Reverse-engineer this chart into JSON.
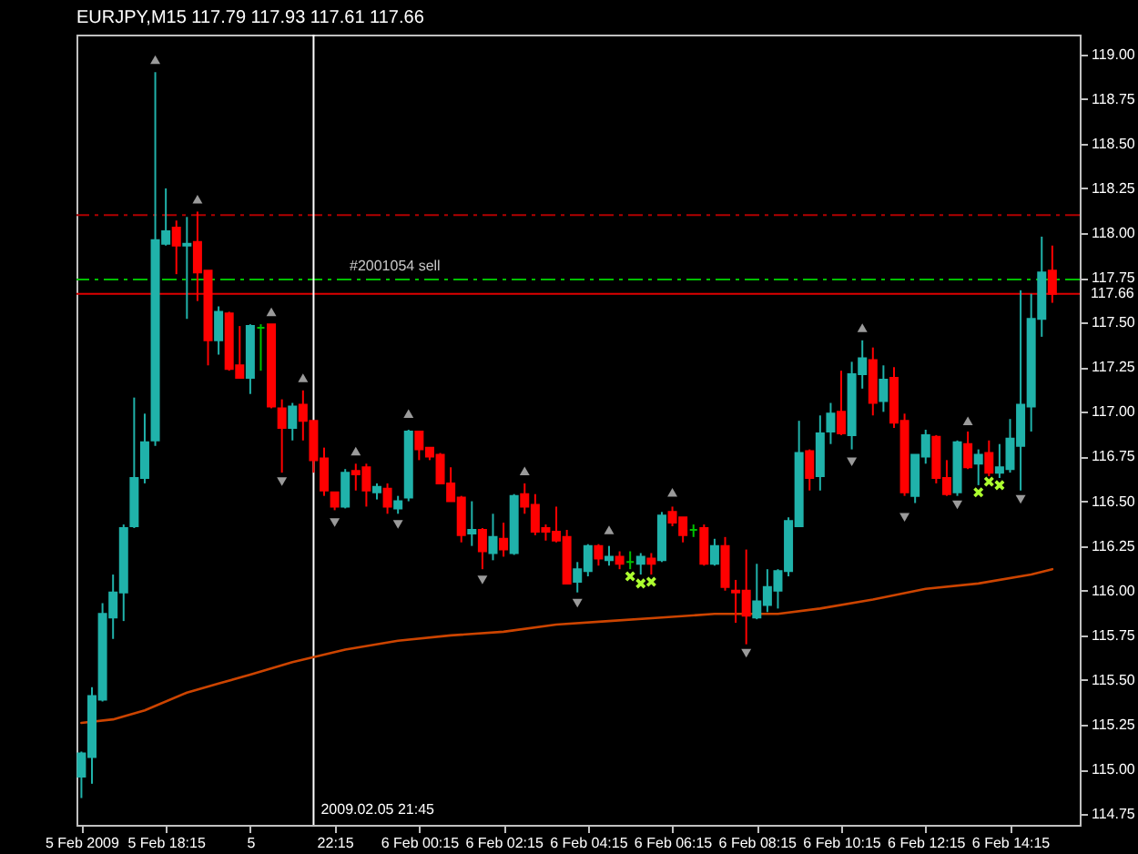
{
  "chart_data": {
    "type": "candlestick",
    "title": "EURJPY,M15 117.79 117.93 117.61 117.66",
    "x": [
      "2009-02-05T16:15",
      "2009-02-05T16:30",
      "2009-02-05T16:45",
      "2009-02-05T17:00",
      "2009-02-05T17:15",
      "2009-02-05T17:30",
      "2009-02-05T17:45",
      "2009-02-05T18:00",
      "2009-02-05T18:15",
      "2009-02-05T18:30",
      "2009-02-05T18:45",
      "2009-02-05T19:00",
      "2009-02-05T19:15",
      "2009-02-05T19:30",
      "2009-02-05T19:45",
      "2009-02-05T20:00",
      "2009-02-05T20:15",
      "2009-02-05T20:30",
      "2009-02-05T20:45",
      "2009-02-05T21:00",
      "2009-02-05T21:15",
      "2009-02-05T21:30",
      "2009-02-05T21:45",
      "2009-02-05T22:00",
      "2009-02-05T22:15",
      "2009-02-05T22:30",
      "2009-02-05T22:45",
      "2009-02-05T23:00",
      "2009-02-05T23:15",
      "2009-02-05T23:30",
      "2009-02-05T23:45",
      "2009-02-06T00:00",
      "2009-02-06T00:15",
      "2009-02-06T00:30",
      "2009-02-06T00:45",
      "2009-02-06T01:00",
      "2009-02-06T01:15",
      "2009-02-06T01:30",
      "2009-02-06T01:45",
      "2009-02-06T02:00",
      "2009-02-06T02:15",
      "2009-02-06T02:30",
      "2009-02-06T02:45",
      "2009-02-06T03:00",
      "2009-02-06T03:15",
      "2009-02-06T03:30",
      "2009-02-06T03:45",
      "2009-02-06T04:00",
      "2009-02-06T04:15",
      "2009-02-06T04:30",
      "2009-02-06T04:45",
      "2009-02-06T05:00",
      "2009-02-06T05:15",
      "2009-02-06T05:30",
      "2009-02-06T05:45",
      "2009-02-06T06:00",
      "2009-02-06T06:15",
      "2009-02-06T06:30",
      "2009-02-06T06:45",
      "2009-02-06T07:00",
      "2009-02-06T07:15",
      "2009-02-06T07:30",
      "2009-02-06T07:45",
      "2009-02-06T08:00",
      "2009-02-06T08:15",
      "2009-02-06T08:30",
      "2009-02-06T08:45",
      "2009-02-06T09:00",
      "2009-02-06T09:15",
      "2009-02-06T09:30",
      "2009-02-06T09:45",
      "2009-02-06T10:00",
      "2009-02-06T10:15",
      "2009-02-06T10:30",
      "2009-02-06T10:45",
      "2009-02-06T11:00",
      "2009-02-06T11:15",
      "2009-02-06T11:30",
      "2009-02-06T11:45",
      "2009-02-06T12:00",
      "2009-02-06T12:15",
      "2009-02-06T12:30",
      "2009-02-06T12:45",
      "2009-02-06T13:00",
      "2009-02-06T13:15",
      "2009-02-06T13:30",
      "2009-02-06T13:45",
      "2009-02-06T14:00",
      "2009-02-06T14:15",
      "2009-02-06T14:30",
      "2009-02-06T14:45",
      "2009-02-06T15:00",
      "2009-02-06T15:15"
    ],
    "ohlc": [
      [
        114.96,
        115.1,
        114.84,
        115.09
      ],
      [
        115.07,
        115.46,
        114.92,
        115.41
      ],
      [
        115.39,
        115.93,
        115.38,
        115.87
      ],
      [
        115.85,
        116.09,
        115.73,
        115.99
      ],
      [
        115.99,
        116.37,
        115.83,
        116.35
      ],
      [
        116.36,
        117.08,
        116.35,
        116.63
      ],
      [
        116.63,
        116.99,
        116.6,
        116.83
      ],
      [
        116.84,
        118.9,
        116.81,
        117.96
      ],
      [
        117.94,
        118.25,
        117.93,
        118.01
      ],
      [
        118.03,
        118.07,
        117.77,
        117.93
      ],
      [
        117.93,
        118.09,
        117.52,
        117.94
      ],
      [
        117.95,
        118.12,
        117.62,
        117.78
      ],
      [
        117.79,
        117.79,
        117.26,
        117.4
      ],
      [
        117.4,
        117.59,
        117.32,
        117.56
      ],
      [
        117.55,
        117.56,
        117.23,
        117.24
      ],
      [
        117.26,
        117.48,
        117.19,
        117.19
      ],
      [
        117.19,
        117.49,
        117.1,
        117.48
      ],
      [
        117.47,
        117.49,
        117.23,
        117.47
      ],
      [
        117.49,
        117.49,
        117.02,
        117.03
      ],
      [
        117.02,
        117.07,
        116.66,
        116.91
      ],
      [
        116.91,
        117.05,
        116.84,
        117.03
      ],
      [
        117.04,
        117.12,
        116.84,
        116.95
      ],
      [
        116.95,
        116.95,
        116.66,
        116.73
      ],
      [
        116.74,
        116.8,
        116.53,
        116.56
      ],
      [
        116.55,
        116.55,
        116.45,
        116.47
      ],
      [
        116.47,
        116.68,
        116.46,
        116.66
      ],
      [
        116.67,
        116.71,
        116.56,
        116.65
      ],
      [
        116.69,
        116.71,
        116.47,
        116.56
      ],
      [
        116.55,
        116.6,
        116.51,
        116.58
      ],
      [
        116.57,
        116.6,
        116.43,
        116.47
      ],
      [
        116.46,
        116.53,
        116.43,
        116.5
      ],
      [
        116.52,
        116.9,
        116.5,
        116.89
      ],
      [
        116.89,
        116.89,
        116.73,
        116.79
      ],
      [
        116.8,
        116.8,
        116.73,
        116.75
      ],
      [
        116.76,
        116.77,
        116.6,
        116.6
      ],
      [
        116.6,
        116.69,
        116.5,
        116.5
      ],
      [
        116.52,
        116.53,
        116.27,
        116.31
      ],
      [
        116.32,
        116.5,
        116.25,
        116.34
      ],
      [
        116.34,
        116.35,
        116.12,
        116.22
      ],
      [
        116.21,
        116.43,
        116.17,
        116.3
      ],
      [
        116.29,
        116.38,
        116.19,
        116.23
      ],
      [
        116.21,
        116.54,
        116.2,
        116.53
      ],
      [
        116.54,
        116.6,
        116.43,
        116.47
      ],
      [
        116.48,
        116.54,
        116.31,
        116.33
      ],
      [
        116.35,
        116.37,
        116.28,
        116.33
      ],
      [
        116.33,
        116.47,
        116.27,
        116.28
      ],
      [
        116.3,
        116.34,
        116.04,
        116.04
      ],
      [
        116.05,
        116.16,
        115.99,
        116.12
      ],
      [
        116.11,
        116.26,
        116.08,
        116.25
      ],
      [
        116.25,
        116.26,
        116.14,
        116.18
      ],
      [
        116.17,
        116.25,
        116.14,
        116.19
      ],
      [
        116.19,
        116.22,
        116.12,
        116.15
      ],
      [
        116.16,
        116.22,
        116.12,
        116.16
      ],
      [
        116.15,
        116.21,
        116.09,
        116.19
      ],
      [
        116.18,
        116.21,
        116.09,
        116.15
      ],
      [
        116.17,
        116.44,
        116.16,
        116.42
      ],
      [
        116.44,
        116.47,
        116.36,
        116.38
      ],
      [
        116.41,
        116.41,
        116.27,
        116.31
      ],
      [
        116.34,
        116.37,
        116.3,
        116.34
      ],
      [
        116.35,
        116.37,
        116.14,
        116.15
      ],
      [
        116.15,
        116.29,
        116.14,
        116.25
      ],
      [
        116.25,
        116.3,
        116.0,
        116.02
      ],
      [
        116.0,
        116.06,
        115.82,
        115.99
      ],
      [
        116.0,
        116.23,
        115.7,
        115.86
      ],
      [
        115.85,
        116.15,
        115.84,
        115.94
      ],
      [
        115.92,
        116.12,
        115.88,
        116.02
      ],
      [
        116.0,
        116.12,
        115.9,
        116.11
      ],
      [
        116.11,
        116.41,
        116.08,
        116.39
      ],
      [
        116.36,
        116.95,
        116.36,
        116.77
      ],
      [
        116.78,
        116.79,
        116.56,
        116.63
      ],
      [
        116.64,
        116.98,
        116.56,
        116.88
      ],
      [
        116.89,
        117.05,
        116.82,
        116.99
      ],
      [
        117.0,
        117.23,
        116.87,
        116.88
      ],
      [
        116.87,
        117.28,
        116.79,
        117.21
      ],
      [
        117.21,
        117.4,
        117.13,
        117.3
      ],
      [
        117.29,
        117.36,
        116.98,
        117.05
      ],
      [
        117.06,
        117.26,
        117.0,
        117.18
      ],
      [
        117.19,
        117.25,
        116.91,
        116.94
      ],
      [
        116.95,
        116.99,
        116.53,
        116.55
      ],
      [
        116.53,
        116.76,
        116.49,
        116.76
      ],
      [
        116.75,
        116.9,
        116.71,
        116.87
      ],
      [
        116.86,
        116.87,
        116.6,
        116.63
      ],
      [
        116.63,
        116.73,
        116.53,
        116.54
      ],
      [
        116.55,
        116.84,
        116.53,
        116.83
      ],
      [
        116.82,
        116.89,
        116.68,
        116.69
      ],
      [
        116.71,
        116.79,
        116.59,
        116.76
      ],
      [
        116.77,
        116.84,
        116.64,
        116.66
      ],
      [
        116.66,
        116.82,
        116.63,
        116.69
      ],
      [
        116.68,
        116.96,
        116.66,
        116.85
      ],
      [
        116.81,
        117.68,
        116.56,
        117.04
      ],
      [
        117.03,
        117.66,
        116.89,
        117.52
      ],
      [
        117.52,
        117.98,
        117.42,
        117.78
      ],
      [
        117.79,
        117.93,
        117.61,
        117.66
      ]
    ],
    "colors": [
      "#20b2aa",
      "#20b2aa",
      "#20b2aa",
      "#20b2aa",
      "#20b2aa",
      "#20b2aa",
      "#20b2aa",
      "#20b2aa",
      "#20b2aa",
      "#ff0000",
      "#20b2aa",
      "#ff0000",
      "#ff0000",
      "#20b2aa",
      "#ff0000",
      "#ff0000",
      "#20b2aa",
      "#00c000",
      "#ff0000",
      "#ff0000",
      "#20b2aa",
      "#ff0000",
      "#ff0000",
      "#ff0000",
      "#ff0000",
      "#20b2aa",
      "#ff0000",
      "#ff0000",
      "#20b2aa",
      "#ff0000",
      "#20b2aa",
      "#20b2aa",
      "#ff0000",
      "#ff0000",
      "#ff0000",
      "#ff0000",
      "#ff0000",
      "#20b2aa",
      "#ff0000",
      "#20b2aa",
      "#ff0000",
      "#20b2aa",
      "#ff0000",
      "#ff0000",
      "#ff0000",
      "#ff0000",
      "#ff0000",
      "#20b2aa",
      "#20b2aa",
      "#ff0000",
      "#20b2aa",
      "#ff0000",
      "#00c000",
      "#20b2aa",
      "#ff0000",
      "#20b2aa",
      "#ff0000",
      "#ff0000",
      "#00c000",
      "#ff0000",
      "#20b2aa",
      "#ff0000",
      "#ff0000",
      "#ff0000",
      "#20b2aa",
      "#20b2aa",
      "#20b2aa",
      "#20b2aa",
      "#20b2aa",
      "#ff0000",
      "#20b2aa",
      "#20b2aa",
      "#ff0000",
      "#20b2aa",
      "#20b2aa",
      "#ff0000",
      "#20b2aa",
      "#ff0000",
      "#ff0000",
      "#20b2aa",
      "#20b2aa",
      "#ff0000",
      "#ff0000",
      "#20b2aa",
      "#ff0000",
      "#20b2aa",
      "#ff0000",
      "#20b2aa",
      "#20b2aa",
      "#20b2aa",
      "#20b2aa",
      "#20b2aa",
      "#ff0000"
    ],
    "series": [
      {
        "type": "line",
        "color": "#cc4400",
        "x": [
          "2009-02-05T16:15",
          "2009-02-05T17:00",
          "2009-02-05T17:45",
          "2009-02-05T18:45",
          "2009-02-05T19:30",
          "2009-02-05T20:15",
          "2009-02-05T21:15",
          "2009-02-05T22:30",
          "2009-02-05T23:45",
          "2009-02-06T01:00",
          "2009-02-06T02:15",
          "2009-02-06T03:30",
          "2009-02-06T04:45",
          "2009-02-06T06:00",
          "2009-02-06T07:15",
          "2009-02-06T08:45",
          "2009-02-06T09:45",
          "2009-02-06T11:00",
          "2009-02-06T12:15",
          "2009-02-06T13:30",
          "2009-02-06T14:45",
          "2009-02-06T15:15"
        ],
        "values": [
          115.26,
          115.28,
          115.33,
          115.43,
          115.48,
          115.53,
          115.6,
          115.67,
          115.72,
          115.75,
          115.77,
          115.81,
          115.83,
          115.85,
          115.87,
          115.87,
          115.9,
          115.95,
          116.01,
          116.04,
          116.09,
          116.12
        ]
      },
      {
        "type": "scatter",
        "marker": "triangle",
        "color": "#9a9a9a",
        "x": [
          "2009-02-05T18:00",
          "2009-02-05T19:00",
          "2009-02-05T20:45",
          "2009-02-05T21:30",
          "2009-02-05T22:45",
          "2009-02-06T00:00",
          "2009-02-06T02:45",
          "2009-02-06T04:45",
          "2009-02-06T06:15",
          "2009-02-06T10:45",
          "2009-02-06T13:15"
        ],
        "values": [
          118.97,
          118.19,
          117.56,
          117.19,
          116.78,
          116.99,
          116.67,
          116.34,
          116.55,
          117.47,
          116.95
        ]
      },
      {
        "type": "scatter",
        "marker": "triangle",
        "color": "#9a9a9a",
        "x": [
          "2009-02-05T21:00",
          "2009-02-05T22:15",
          "2009-02-05T23:45",
          "2009-02-06T01:45",
          "2009-02-06T04:00",
          "2009-02-06T08:00",
          "2009-02-06T10:30",
          "2009-02-06T11:45",
          "2009-02-06T13:00",
          "2009-02-06T14:30"
        ],
        "values": [
          116.61,
          116.38,
          116.37,
          116.06,
          115.93,
          115.65,
          116.72,
          116.41,
          116.48,
          116.51
        ]
      },
      {
        "type": "scatter",
        "marker": "cross",
        "color": "#adff2f",
        "x": [
          "2009-02-06T05:15",
          "2009-02-06T05:30",
          "2009-02-06T05:45",
          "2009-02-06T13:30",
          "2009-02-06T13:45",
          "2009-02-06T14:00"
        ],
        "values": [
          116.08,
          116.04,
          116.05,
          116.55,
          116.61,
          116.59
        ]
      }
    ],
    "xlim": [
      "2009-02-05T16:08",
      "2009-02-06T15:54"
    ],
    "ylim": [
      114.69,
      119.11
    ],
    "xticks": [
      {
        "value": "2009-02-05T16:15",
        "label": "5 Feb 2009"
      },
      {
        "value": "2009-02-05T18:15",
        "label": "5 Feb 18:15"
      },
      {
        "value": "2009-02-05T20:15",
        "label": "5"
      },
      {
        "value": "2009-02-05T22:15",
        "label": "22:15"
      },
      {
        "value": "2009-02-06T00:15",
        "label": "6 Feb 00:15"
      },
      {
        "value": "2009-02-06T02:15",
        "label": "6 Feb 02:15"
      },
      {
        "value": "2009-02-06T04:15",
        "label": "6 Feb 04:15"
      },
      {
        "value": "2009-02-06T06:15",
        "label": "6 Feb 06:15"
      },
      {
        "value": "2009-02-06T08:15",
        "label": "6 Feb 08:15"
      },
      {
        "value": "2009-02-06T10:15",
        "label": "6 Feb 10:15"
      },
      {
        "value": "2009-02-06T12:15",
        "label": "6 Feb 12:15"
      },
      {
        "value": "2009-02-06T14:15",
        "label": "6 Feb 14:15"
      }
    ],
    "yticks": [
      {
        "value": 114.75,
        "label": "114.75"
      },
      {
        "value": 115.0,
        "label": "115.00"
      },
      {
        "value": 115.25,
        "label": "115.25"
      },
      {
        "value": 115.5,
        "label": "115.50"
      },
      {
        "value": 115.75,
        "label": "115.75"
      },
      {
        "value": 116.0,
        "label": "116.00"
      },
      {
        "value": 116.25,
        "label": "116.25"
      },
      {
        "value": 116.5,
        "label": "116.50"
      },
      {
        "value": 116.75,
        "label": "116.75"
      },
      {
        "value": 117.0,
        "label": "117.00"
      },
      {
        "value": 117.25,
        "label": "117.25"
      },
      {
        "value": 117.5,
        "label": "117.50"
      },
      {
        "value": 117.75,
        "label": "117.75"
      },
      {
        "value": 118.0,
        "label": "118.00"
      },
      {
        "value": 118.25,
        "label": "118.25"
      },
      {
        "value": 118.5,
        "label": "118.50"
      },
      {
        "value": 118.75,
        "label": "118.75"
      },
      {
        "value": 119.0,
        "label": "119.00"
      }
    ],
    "ref_lines": [
      {
        "axis": "y",
        "value": 118.1,
        "color": "#b00000",
        "line_style": "dashed"
      },
      {
        "axis": "y",
        "value": 117.74,
        "label": "#2001054 sell",
        "color": "#00c000",
        "line_style": "dashed"
      },
      {
        "axis": "y",
        "value": 117.66,
        "label": "117.66",
        "color": "#dd0000",
        "line_style": "solid"
      },
      {
        "axis": "x",
        "value": "2009-02-05T21:45",
        "label": "2009.02.05 21:45",
        "color": "#ffffff",
        "line_style": "solid"
      }
    ]
  }
}
